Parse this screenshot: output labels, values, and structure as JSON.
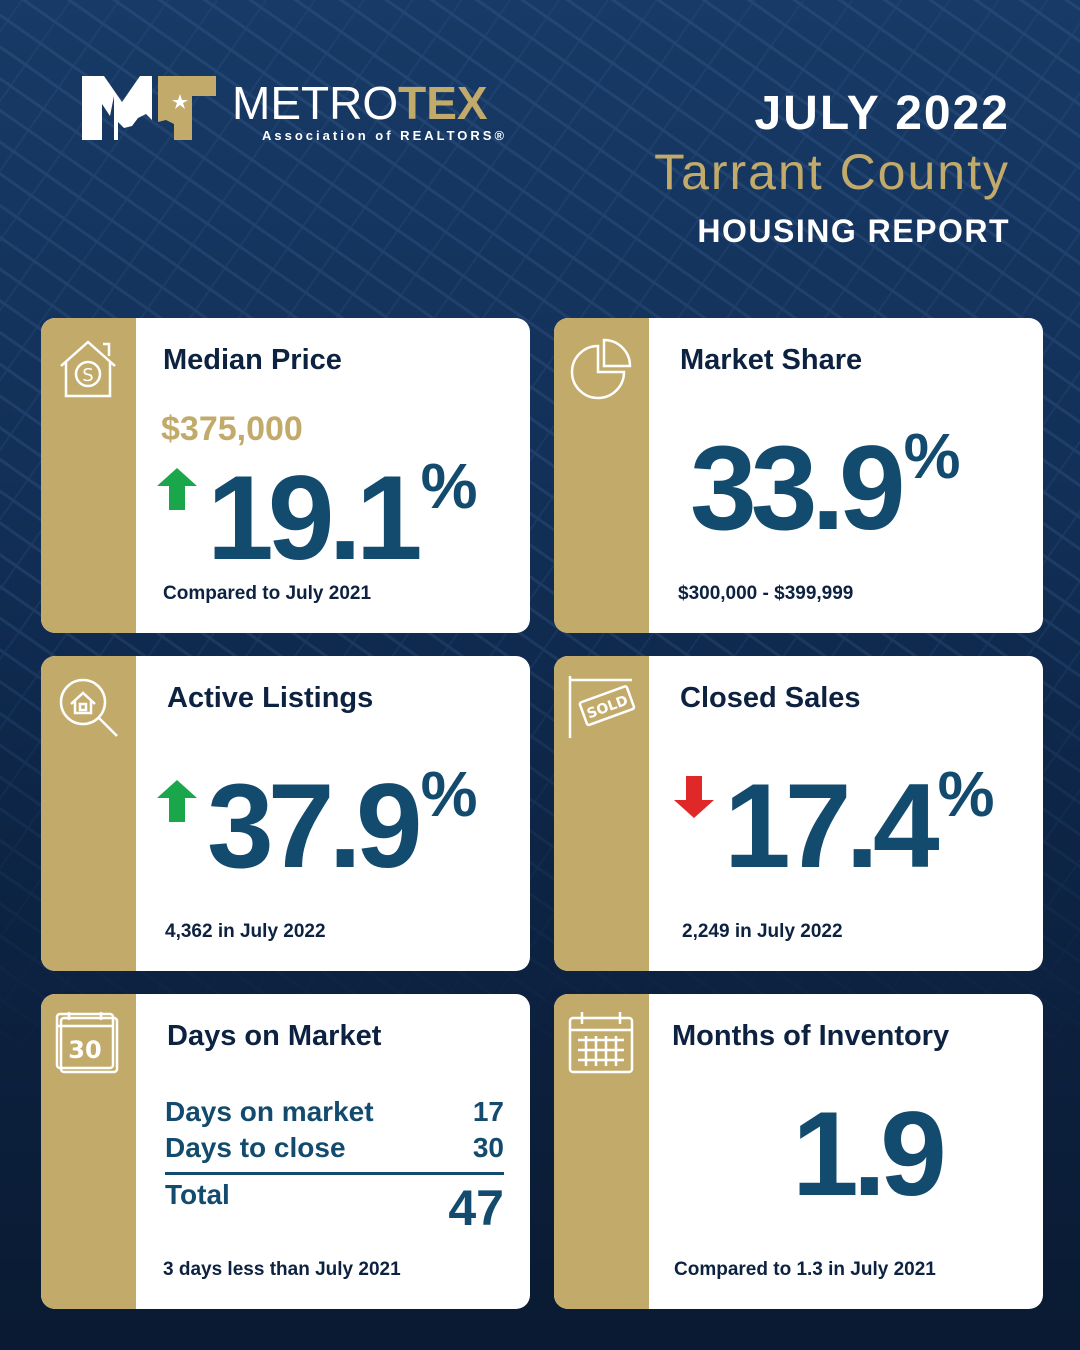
{
  "logo": {
    "mark": "MT",
    "name_a": "METRO",
    "name_b": "TEX",
    "sub": "Association of REALTORS®"
  },
  "header": {
    "month": "JULY 2022",
    "county": "Tarrant County",
    "report": "HOUSING REPORT"
  },
  "colors": {
    "gold": "#c2aa6b",
    "navy": "#0d2240",
    "number": "#134b6e",
    "up": "#1aa64a",
    "down": "#e02828"
  },
  "cards": {
    "median": {
      "icon": "house-dollar-icon",
      "title": "Median Price",
      "price": "$375,000",
      "direction": "up",
      "value": "19.1",
      "unit": "%",
      "note": "Compared to July 2021"
    },
    "share": {
      "icon": "pie-chart-icon",
      "title": "Market Share",
      "value": "33.9",
      "unit": "%",
      "note": "$300,000 - $399,999"
    },
    "active": {
      "icon": "house-search-icon",
      "title": "Active Listings",
      "direction": "up",
      "value": "37.9",
      "unit": "%",
      "note": "4,362 in July 2022"
    },
    "closed": {
      "icon": "sold-sign-icon",
      "title": "Closed Sales",
      "direction": "down",
      "value": "17.4",
      "unit": "%",
      "note": "2,249 in July 2022"
    },
    "dom": {
      "icon": "calendar-30-icon",
      "title": "Days on Market",
      "rows": [
        {
          "label": "Days on market",
          "value": "17"
        },
        {
          "label": "Days to close",
          "value": "30"
        }
      ],
      "total_label": "Total",
      "total": "47",
      "note": "3 days less than July 2021"
    },
    "moi": {
      "icon": "calendar-grid-icon",
      "title": "Months of Inventory",
      "value": "1.9",
      "note": "Compared to 1.3 in July 2021"
    }
  }
}
